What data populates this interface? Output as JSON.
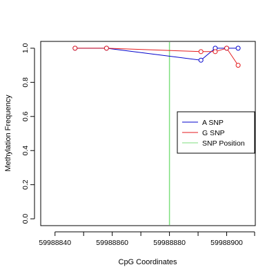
{
  "chart_data": {
    "type": "line",
    "title": "",
    "xlabel": "CpG Coordinates",
    "ylabel": "Methylation Frequency",
    "xlim": [
      59988835,
      59988910
    ],
    "ylim": [
      -0.04,
      1.04
    ],
    "x_ticks": [
      59988840,
      59988860,
      59988880,
      59988900
    ],
    "x_tick_labels": [
      "59988840",
      "59988860",
      "59988880",
      "59988900"
    ],
    "y_ticks": [
      0.0,
      0.2,
      0.4,
      0.6,
      0.8,
      1.0
    ],
    "y_tick_labels": [
      "0.0",
      "0.2",
      "0.4",
      "0.6",
      "0.8",
      "1.0"
    ],
    "grid": false,
    "legend_position": "right",
    "series": [
      {
        "name": "A SNP",
        "color": "#0000cc",
        "points": [
          {
            "x": 59988847,
            "y": 1.0
          },
          {
            "x": 59988858,
            "y": 1.0
          },
          {
            "x": 59988891,
            "y": 0.93
          },
          {
            "x": 59988896,
            "y": 1.0
          },
          {
            "x": 59988900,
            "y": 1.0
          },
          {
            "x": 59988904,
            "y": 1.0
          }
        ]
      },
      {
        "name": "G SNP",
        "color": "#e41a1c",
        "points": [
          {
            "x": 59988847,
            "y": 1.0
          },
          {
            "x": 59988858,
            "y": 1.0
          },
          {
            "x": 59988891,
            "y": 0.98
          },
          {
            "x": 59988896,
            "y": 0.98
          },
          {
            "x": 59988900,
            "y": 1.0
          },
          {
            "x": 59988904,
            "y": 0.9
          }
        ]
      }
    ],
    "vlines": [
      {
        "name": "SNP Position",
        "x": 59988880,
        "color": "#7ddf7d"
      }
    ],
    "legend": [
      {
        "label": "A SNP",
        "color": "#0000cc"
      },
      {
        "label": "G SNP",
        "color": "#e41a1c"
      },
      {
        "label": "SNP Position",
        "color": "#7ddf7d"
      }
    ]
  }
}
